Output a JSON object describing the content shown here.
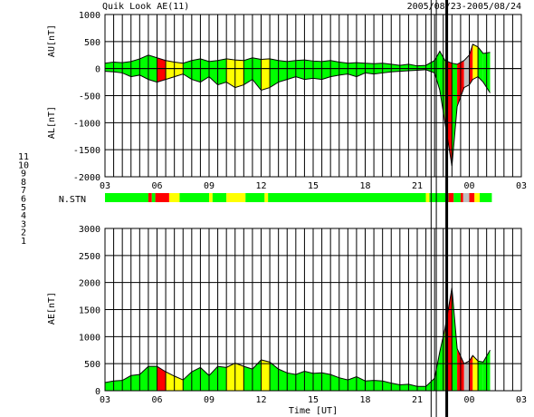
{
  "chart_data": {
    "type": "area",
    "title": "Quik Look AE(11)",
    "date_range": "2005/08/23-2005/08/24",
    "xlabel": "Time [UT]",
    "x_ticks": [
      "03",
      "06",
      "09",
      "12",
      "15",
      "18",
      "21",
      "00",
      "03"
    ],
    "nstn_label": "N.STN",
    "legend_title": "",
    "station_counts": [
      {
        "n": "11",
        "color": "#00ffff"
      },
      {
        "n": "10",
        "color": "#ff00ff"
      },
      {
        "n": "9",
        "color": "#0000c0"
      },
      {
        "n": "8",
        "color": "#ffff00"
      },
      {
        "n": "7",
        "color": "#00ff00"
      },
      {
        "n": "6",
        "color": "#ff0000"
      },
      {
        "n": "5",
        "color": "#c0c0c0"
      },
      {
        "n": "4",
        "color": "#808080"
      },
      {
        "n": "3",
        "color": "#00a0a0"
      },
      {
        "n": "2",
        "color": "#800080"
      },
      {
        "n": "1",
        "color": "#0000ff"
      }
    ],
    "colors": {
      "green": "#00ff00",
      "red": "#ff0000",
      "yellow": "#ffff00",
      "gray": "#c0c0c0"
    },
    "nstn_segments": [
      {
        "from": 3.0,
        "to": 5.5,
        "c": "green"
      },
      {
        "from": 5.5,
        "to": 5.7,
        "c": "red"
      },
      {
        "from": 5.7,
        "to": 5.9,
        "c": "green"
      },
      {
        "from": 5.9,
        "to": 6.7,
        "c": "red"
      },
      {
        "from": 6.7,
        "to": 7.3,
        "c": "yellow"
      },
      {
        "from": 7.3,
        "to": 9.0,
        "c": "green"
      },
      {
        "from": 9.0,
        "to": 9.2,
        "c": "yellow"
      },
      {
        "from": 9.2,
        "to": 10.0,
        "c": "green"
      },
      {
        "from": 10.0,
        "to": 11.1,
        "c": "yellow"
      },
      {
        "from": 11.1,
        "to": 12.2,
        "c": "green"
      },
      {
        "from": 12.2,
        "to": 12.4,
        "c": "yellow"
      },
      {
        "from": 12.4,
        "to": 21.5,
        "c": "green"
      },
      {
        "from": 21.5,
        "to": 21.7,
        "c": "yellow"
      },
      {
        "from": 21.7,
        "to": 22.8,
        "c": "green"
      },
      {
        "from": 22.8,
        "to": 23.1,
        "c": "red"
      },
      {
        "from": 23.1,
        "to": 23.5,
        "c": "green"
      },
      {
        "from": 23.5,
        "to": 23.65,
        "c": "red"
      },
      {
        "from": 23.65,
        "to": 24.0,
        "c": "gray"
      },
      {
        "from": 24.0,
        "to": 24.3,
        "c": "red"
      },
      {
        "from": 24.3,
        "to": 24.6,
        "c": "yellow"
      },
      {
        "from": 24.6,
        "to": 25.3,
        "c": "green"
      }
    ],
    "markers": [
      {
        "x": 21.8
      },
      {
        "x": 22.1
      },
      {
        "x": 22.7
      }
    ],
    "panels": [
      {
        "id": "au-al",
        "ylabels": [
          "AU[nT]",
          "AL[nT]"
        ],
        "ylim": [
          -2000,
          1000
        ],
        "y_ticks": [
          1000,
          500,
          0,
          -500,
          -1000,
          -1500,
          -2000
        ],
        "au": {
          "x": [
            3.0,
            3.5,
            4.0,
            4.5,
            5.0,
            5.5,
            6.0,
            6.5,
            7.0,
            7.5,
            8.0,
            8.5,
            9.0,
            9.5,
            10.0,
            10.5,
            11.0,
            11.5,
            12.0,
            12.5,
            13.0,
            13.5,
            14.0,
            14.5,
            15.0,
            15.5,
            16.0,
            16.5,
            17.0,
            17.5,
            18.0,
            18.5,
            19.0,
            19.5,
            20.0,
            20.5,
            21.0,
            21.5,
            22.0,
            22.3,
            22.6,
            23.0,
            23.3,
            23.7,
            24.0,
            24.2,
            24.5,
            24.8,
            25.2
          ],
          "y": [
            100,
            120,
            110,
            130,
            180,
            250,
            200,
            150,
            120,
            100,
            150,
            180,
            130,
            150,
            180,
            160,
            150,
            200,
            170,
            180,
            150,
            130,
            150,
            160,
            140,
            130,
            150,
            120,
            100,
            110,
            100,
            90,
            100,
            80,
            60,
            80,
            50,
            60,
            150,
            320,
            150,
            100,
            80,
            150,
            250,
            450,
            400,
            280,
            300
          ]
        },
        "al": {
          "x": [
            3.0,
            3.5,
            4.0,
            4.5,
            5.0,
            5.5,
            6.0,
            6.5,
            7.0,
            7.5,
            8.0,
            8.5,
            9.0,
            9.5,
            10.0,
            10.5,
            11.0,
            11.5,
            12.0,
            12.5,
            13.0,
            13.5,
            14.0,
            14.5,
            15.0,
            15.5,
            16.0,
            16.5,
            17.0,
            17.5,
            18.0,
            18.5,
            19.0,
            19.5,
            20.0,
            20.5,
            21.0,
            21.5,
            22.0,
            22.3,
            22.6,
            23.0,
            23.3,
            23.7,
            24.0,
            24.2,
            24.5,
            24.8,
            25.2
          ],
          "y": [
            -50,
            -60,
            -80,
            -150,
            -120,
            -200,
            -250,
            -200,
            -150,
            -100,
            -200,
            -250,
            -150,
            -300,
            -250,
            -350,
            -300,
            -200,
            -400,
            -350,
            -250,
            -200,
            -150,
            -200,
            -180,
            -200,
            -150,
            -120,
            -100,
            -150,
            -80,
            -100,
            -80,
            -60,
            -50,
            -40,
            -30,
            -20,
            -80,
            -400,
            -1000,
            -1800,
            -700,
            -350,
            -300,
            -200,
            -150,
            -250,
            -450
          ]
        }
      },
      {
        "id": "ae",
        "ylabels": [
          "AE[nT]"
        ],
        "ylim": [
          0,
          3000
        ],
        "y_ticks": [
          3000,
          2500,
          2000,
          1500,
          1000,
          500,
          0
        ],
        "ae": {
          "x": [
            3.0,
            3.5,
            4.0,
            4.5,
            5.0,
            5.5,
            6.0,
            6.5,
            7.0,
            7.5,
            8.0,
            8.5,
            9.0,
            9.5,
            10.0,
            10.5,
            11.0,
            11.5,
            12.0,
            12.5,
            13.0,
            13.5,
            14.0,
            14.5,
            15.0,
            15.5,
            16.0,
            16.5,
            17.0,
            17.5,
            18.0,
            18.5,
            19.0,
            19.5,
            20.0,
            20.5,
            21.0,
            21.5,
            22.0,
            22.3,
            22.6,
            23.0,
            23.3,
            23.7,
            24.0,
            24.2,
            24.5,
            24.8,
            25.2
          ],
          "y": [
            150,
            180,
            190,
            280,
            300,
            450,
            450,
            350,
            270,
            200,
            350,
            430,
            280,
            450,
            430,
            510,
            450,
            400,
            570,
            530,
            400,
            330,
            300,
            360,
            320,
            330,
            300,
            240,
            200,
            260,
            180,
            190,
            180,
            140,
            110,
            120,
            80,
            80,
            230,
            720,
            1150,
            1900,
            780,
            500,
            550,
            650,
            550,
            530,
            750
          ]
        }
      }
    ]
  }
}
